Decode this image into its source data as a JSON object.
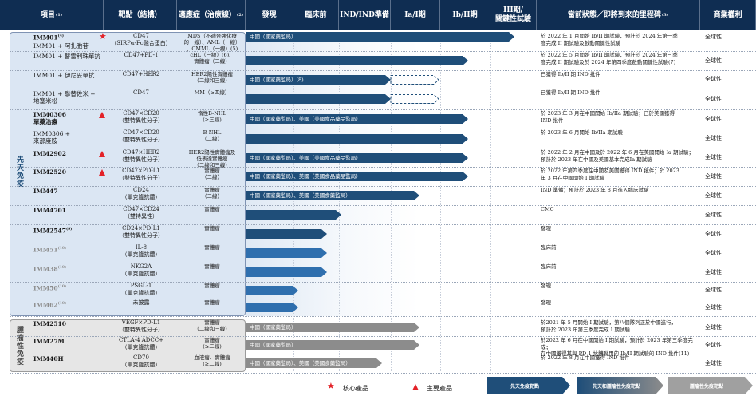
{
  "header": {
    "cols": [
      {
        "label": "項目",
        "sup": "(1)"
      },
      {
        "label": "靶點（結構）",
        "sup": ""
      },
      {
        "label": "適應症（治療線）",
        "sup": "(2)"
      },
      {
        "label": "發現",
        "sup": ""
      },
      {
        "label": "臨床前",
        "sup": ""
      },
      {
        "label": "IND/IND準備",
        "sup": ""
      },
      {
        "label": "Ia/I期",
        "sup": ""
      },
      {
        "label": "Ib/II期",
        "sup": ""
      },
      {
        "label": "III期/\n關鍵性試驗",
        "sup": ""
      },
      {
        "label": "當前狀態／即將到來的里程碑",
        "sup": "(3)"
      },
      {
        "label": "商業權利",
        "sup": ""
      }
    ]
  },
  "groups": {
    "innate": "先天免疫",
    "tumor": "腫瘤性免疫"
  },
  "colors": {
    "header_bg": "#0f2d52",
    "innate_bar": "#1f4e79",
    "innate_bar_light": "#2f6fae",
    "tumor_bar": "#8c8c8c",
    "marker_red": "#e32228",
    "innate_bg": "#dbe6f3"
  },
  "rows": [
    {
      "code": "IMM01",
      "sup": "(4)",
      "marker": "star",
      "target": "CD47\n（SIRPα-Fc融合蛋白）",
      "indication": "MDS（不適合強化療\n的一線）、AML（一線）\n、CMML（一線）(5)",
      "bar_label": "中國（國家藥監局）",
      "stage": 0.93,
      "dashed": false,
      "status": "於 2022 年 1 月開始 Ib/II 期試驗，預計於 2024 年第一季\n度完成 II 期試驗及啟動關鍵性試驗",
      "rights": "全球性",
      "gray": false
    },
    {
      "code": "IMM01 + 阿扎胞苷",
      "sup": "",
      "marker": "",
      "target": "",
      "indication": "",
      "bar_label": "",
      "stage": 0,
      "dashed": false,
      "status": "",
      "rights": "",
      "gray": false
    },
    {
      "code": "IMM01 + 替雷利珠單抗",
      "sup": "",
      "marker": "",
      "target": "CD47+PD-1",
      "indication": "cHL（三線）(6)、\n實體瘤（二線）",
      "bar_label": "",
      "stage": 0.77,
      "dashed": false,
      "status": "於 2022 年 5 月開始 Ib/II 期試驗，預計於 2024 年第三季\n度完成 II 期試驗及於 2024 年第四季度啟動關鍵性試驗(7)",
      "rights": "全球性",
      "gray": false
    },
    {
      "code": "IMM01 + 伊尼妥單抗",
      "sup": "",
      "marker": "",
      "target": "CD47+HER2",
      "indication": "HER2陽性實體瘤\n（二線和三線）",
      "bar_label": "中國（國家藥監局）(8)",
      "stage": 0.6,
      "dashed": true,
      "status": "已獲得 Ib/II 期 IND 批件",
      "rights": "全球性",
      "gray": false
    },
    {
      "code": "IMM01 + 聯替佐米 +\n地塞米松",
      "sup": "",
      "marker": "",
      "target": "CD47",
      "indication": "MM（≥四線）",
      "bar_label": "",
      "stage": 0.6,
      "dashed": true,
      "status": "已獲得 Ib/II 期 IND 批件",
      "rights": "全球性",
      "gray": false
    },
    {
      "code": "IMM0306\n單藥治療",
      "sup": "",
      "marker": "tri",
      "target": "CD47×CD20\n（雙特異性分子）",
      "indication": "惰性B-NHL\n(≥三線)",
      "bar_label": "中國（國家藥監局）、美國（美國食品藥品監局）",
      "stage": 0.77,
      "dashed": false,
      "status": "於 2023 年 3 月在中國開始 Ib/IIa 期試驗；已於美國獲得\nIND 批件",
      "rights": "全球性",
      "gray": false
    },
    {
      "code": "IMM0306 +\n來那度胺",
      "sup": "",
      "marker": "",
      "target": "CD47×CD20\n（雙特異性分子）",
      "indication": "B-NHL\n（二線）",
      "bar_label": "",
      "stage": 0.77,
      "dashed": false,
      "status": "於 2023 年 6 月開始 Ib/IIa 期試驗",
      "rights": "全球性",
      "gray": false
    },
    {
      "code": "IMM2902",
      "sup": "",
      "marker": "tri",
      "target": "CD47×HER2\n（雙特異性分子）",
      "indication": "HER2陽性實體瘤及\n低表達實體瘤\n（二線和三線）",
      "bar_label": "中國（國家藥監局）、美國（美國食品藥品監局）",
      "stage": 0.77,
      "dashed": false,
      "status": "於 2022 年 2 月在中國及於 2022 年 6 月在美國開始 Ia 期試驗；\n預計於 2023 年在中國及美國基本完成Ia 期試驗",
      "rights": "全球性",
      "gray": false
    },
    {
      "code": "IMM2520",
      "sup": "",
      "marker": "tri",
      "target": "CD47×PD-L1\n（雙特異性分子）",
      "indication": "實體瘤\n（二線）",
      "bar_label": "中國（國家藥監局）、美國（美國食品藥品監局）",
      "stage": 0.77,
      "dashed": false,
      "status": "於 2022 年第四季度在中國及美國獲得 IND 批件；於 2023\n年 3 月在中國開始 I 期試驗",
      "rights": "全球性",
      "gray": false
    },
    {
      "code": "IMM47",
      "sup": "",
      "marker": "",
      "target": "CD24\n（單克隆抗體）",
      "indication": "實體瘤\n（二線）",
      "bar_label": "中國（國家藥監局）、美國（美國食藥監局）",
      "stage": 0.6,
      "dashed": false,
      "status": "IND 準備；預計於 2023 年 8 月進入臨床試驗",
      "rights": "全球性",
      "gray": false
    },
    {
      "code": "IMM4701",
      "sup": "",
      "marker": "",
      "target": "CD47×CD24\n（雙特異性）",
      "indication": "實體瘤",
      "bar_label": "",
      "stage": 0.33,
      "dashed": false,
      "status": "CMC",
      "rights": "全球性",
      "gray": false
    },
    {
      "code": "IMM2547",
      "sup": "(9)",
      "marker": "",
      "target": "CD24×PD-L1\n（雙特異性分子）",
      "indication": "實體瘤",
      "bar_label": "",
      "stage": 0.28,
      "dashed": false,
      "status": "發現",
      "rights": "全球性",
      "gray": false
    },
    {
      "code": "IMM51",
      "sup": "(10)",
      "marker": "",
      "target": "IL-8\n（單克隆抗體）",
      "indication": "實體瘤",
      "bar_label": "",
      "stage": 0.28,
      "dashed": false,
      "status": "臨床前",
      "rights": "全球性",
      "gray": true
    },
    {
      "code": "IMM38",
      "sup": "(10)",
      "marker": "",
      "target": "NKG2A\n（單克隆抗體）",
      "indication": "實體瘤",
      "bar_label": "",
      "stage": 0.28,
      "dashed": false,
      "status": "臨床前",
      "rights": "全球性",
      "gray": true
    },
    {
      "code": "IMM50",
      "sup": "(10)",
      "marker": "",
      "target": "PSGL-1\n（單克隆抗體）",
      "indication": "實體瘤",
      "bar_label": "",
      "stage": 0.18,
      "dashed": false,
      "status": "發現",
      "rights": "全球性",
      "gray": true
    },
    {
      "code": "IMM62",
      "sup": "(10)",
      "marker": "",
      "target": "未披露",
      "indication": "實體瘤",
      "bar_label": "",
      "stage": 0.18,
      "dashed": false,
      "status": "發現",
      "rights": "全球性",
      "gray": true
    },
    {
      "code": "IMM2510",
      "sup": "",
      "marker": "",
      "target": "VEGF×PD-L1\n（雙特異性分子）",
      "indication": "實體瘤\n（二線和三線）",
      "bar_label": "中國（國家藥監局）",
      "stage": 0.6,
      "dashed": false,
      "status": "於2021 年 5 月開始 I 期試驗，第八個隊列正於中國進行，\n預計於 2023 年第三季度完成 I 期試驗",
      "rights": "全球性",
      "gray": false,
      "tumor": true
    },
    {
      "code": "IMM27M",
      "sup": "",
      "marker": "",
      "target": "CTLA-4 ADCC+\n（單克隆抗體）",
      "indication": "實體瘤\n(≥二線)",
      "bar_label": "中國（國家藥監局）",
      "stage": 0.6,
      "dashed": false,
      "status": "於2022 年 6 月在中國開始 I 期試驗，預計於 2023 年第三季度完成；\n在中國獲得其與 PD-1 抗體聯用的 Ib/II 期試驗的 IND 批件(11)",
      "rights": "全球性",
      "gray": false,
      "tumor": true
    },
    {
      "code": "IMM40H",
      "sup": "",
      "marker": "",
      "target": "CD70\n（單克隆抗體）",
      "indication": "血液瘤、實體瘤\n(≥二線)",
      "bar_label": "中國（國家藥監局）、美國（美國食藥監局）",
      "stage": 0.47,
      "dashed": false,
      "status": "於 2022 年 8 月在中國獲得 IND 批件",
      "rights": "全球性",
      "gray": false,
      "tumor": true
    }
  ],
  "legend": {
    "core": "核心產品",
    "key": "主要產品",
    "arrows": [
      "先天免疫靶點",
      "先天和腫瘤性免疫靶點",
      "腫瘤性免疫靶點"
    ]
  }
}
